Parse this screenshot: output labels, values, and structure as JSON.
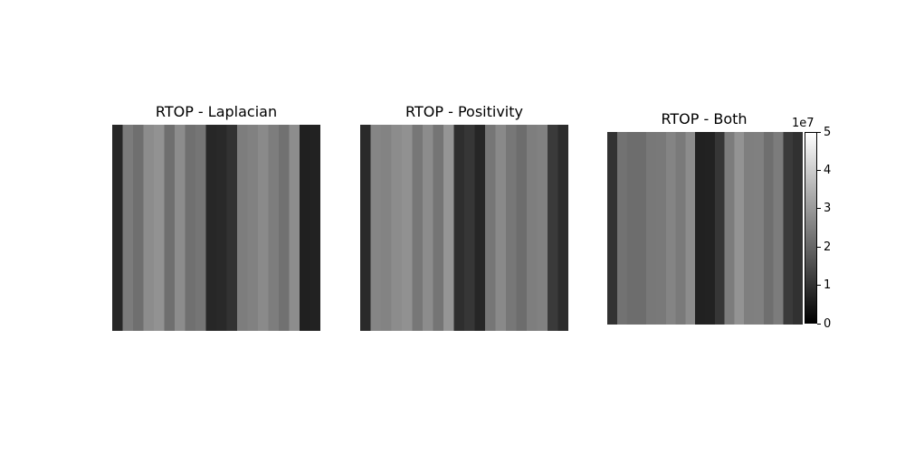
{
  "chart_data": [
    {
      "type": "heatmap",
      "title": "RTOP - Laplacian",
      "colormap": "gray",
      "axes_visible": false,
      "grid": false,
      "rows": 20,
      "cols": 20,
      "seed": 11,
      "vmin": 0,
      "vmax": 5
    },
    {
      "type": "heatmap",
      "title": "RTOP - Positivity",
      "colormap": "gray",
      "axes_visible": false,
      "grid": false,
      "rows": 20,
      "cols": 20,
      "seed": 23,
      "vmin": 0,
      "vmax": 5
    },
    {
      "type": "heatmap",
      "title": "RTOP - Both",
      "colormap": "gray",
      "axes_visible": false,
      "grid": false,
      "rows": 20,
      "cols": 20,
      "seed": 37,
      "vmin": 0,
      "vmax": 5,
      "colorbar": {
        "orientation": "vertical",
        "ticks": [
          0,
          1,
          2,
          3,
          4,
          5
        ],
        "tick_labels": [
          "0",
          "1",
          "2",
          "3",
          "4",
          "5"
        ],
        "offset_text": "1e7",
        "range": [
          0,
          5
        ]
      }
    }
  ]
}
